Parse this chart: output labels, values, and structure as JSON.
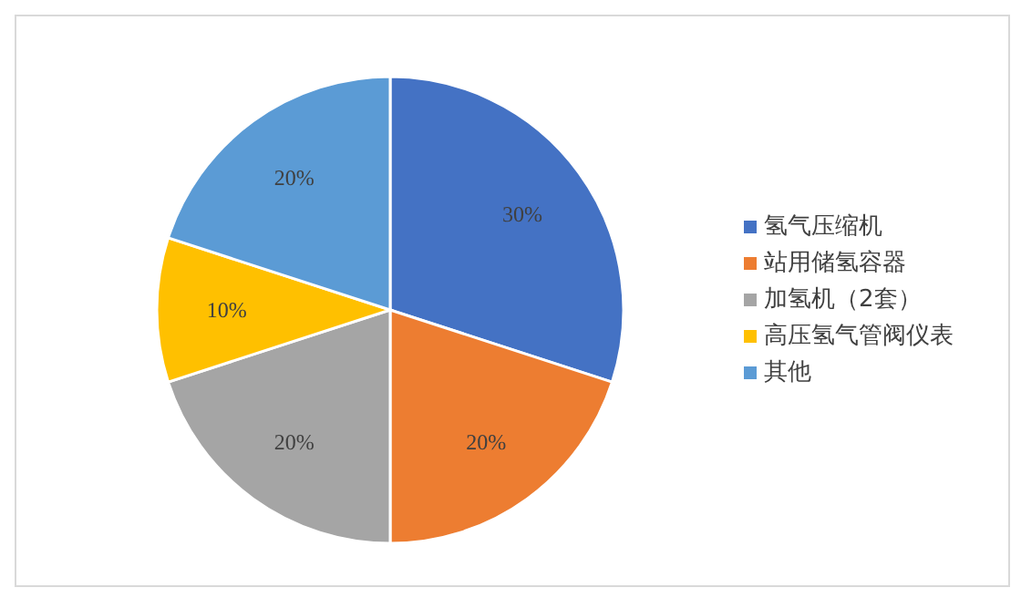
{
  "chart_data": {
    "type": "pie",
    "categories": [
      "氢气压缩机",
      "站用储氢容器",
      "加氢机（2套）",
      "高压氢气管阀仪表",
      "其他"
    ],
    "values": [
      30,
      20,
      20,
      10,
      20
    ],
    "colors": [
      "#4472c4",
      "#ed7d31",
      "#a5a5a5",
      "#ffc000",
      "#5b9bd5"
    ],
    "value_labels": [
      "30%",
      "20%",
      "20%",
      "10%",
      "20%"
    ],
    "legend": "right"
  }
}
